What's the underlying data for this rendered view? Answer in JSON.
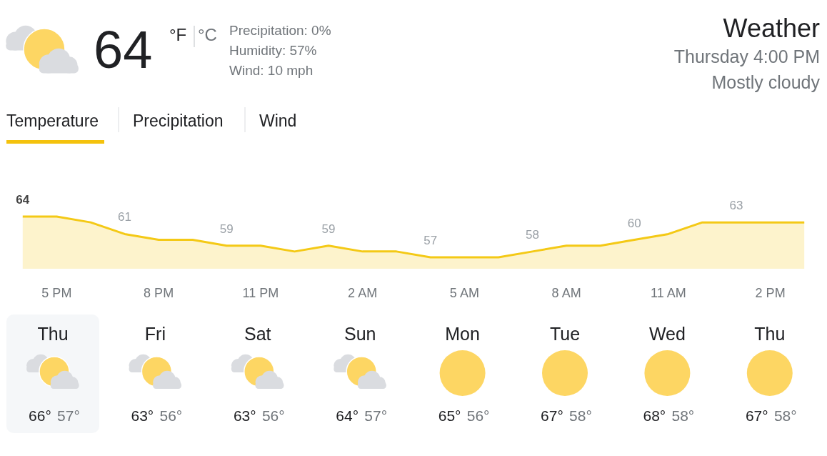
{
  "chart_data": [
    {
      "type": "other",
      "title": "Weather",
      "subtitle": "Thursday 4:00 PM",
      "annotations": [
        "Mostly cloudy",
        "64",
        "°F",
        "°C",
        "Precipitation: 0%",
        "Humidity: 57%",
        "Wind: 10 mph",
        "Temperature",
        "Precipitation",
        "Wind"
      ]
    },
    {
      "type": "area",
      "categories": [
        null,
        "5 PM",
        null,
        null,
        "8 PM",
        null,
        null,
        "11 PM",
        null,
        null,
        "2 AM",
        null,
        null,
        "5 AM",
        null,
        null,
        "8 AM",
        null,
        null,
        "11 AM",
        null,
        null,
        "2 PM",
        null
      ],
      "values": [
        64,
        64,
        63,
        61,
        60,
        60,
        59,
        59,
        58,
        59,
        58,
        58,
        57,
        57,
        57,
        58,
        59,
        59,
        60,
        61,
        63,
        63,
        63,
        63
      ],
      "value_labels": [
        "64",
        null,
        null,
        "61",
        null,
        null,
        "59",
        null,
        null,
        "59",
        null,
        null,
        "57",
        null,
        null,
        "58",
        null,
        null,
        "60",
        null,
        null,
        "63",
        null,
        null
      ],
      "color": "#f4c916"
    },
    {
      "type": "other",
      "categories": [
        "Thu",
        "Fri",
        "Sat",
        "Sun",
        "Mon",
        "Tue",
        "Wed",
        "Thu"
      ],
      "series": [
        {
          "values": [
            66,
            63,
            63,
            64,
            65,
            67,
            68,
            67
          ],
          "value_labels": [
            "66°",
            "63°",
            "63°",
            "64°",
            "65°",
            "67°",
            "68°",
            "67°"
          ]
        },
        {
          "values": [
            57,
            56,
            56,
            57,
            56,
            58,
            58,
            58
          ],
          "value_labels": [
            "57°",
            "56°",
            "56°",
            "57°",
            "56°",
            "58°",
            "58°",
            "58°"
          ]
        }
      ]
    }
  ]
}
